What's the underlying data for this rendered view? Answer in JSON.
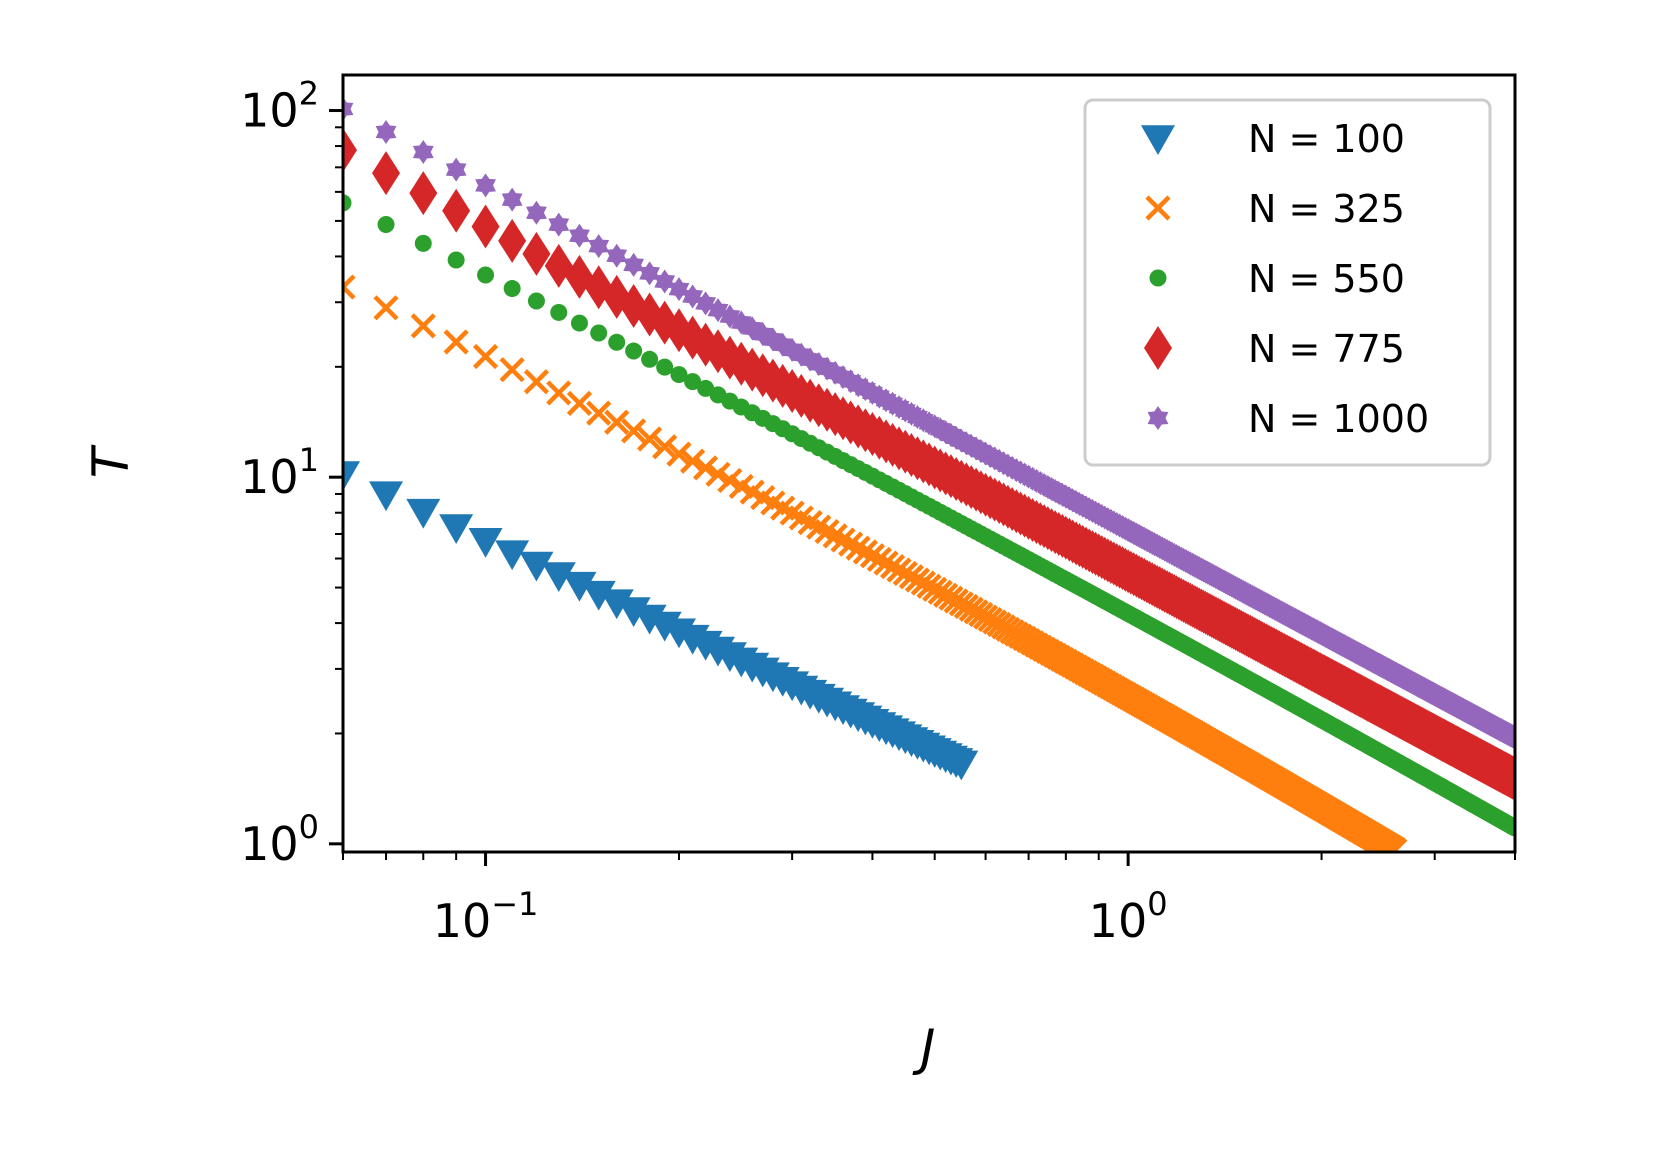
{
  "chart_data": {
    "type": "scatter",
    "title": "",
    "xlabel": "J",
    "ylabel": "T",
    "xscale": "log",
    "yscale": "log",
    "xlim": [
      0.06,
      4.0
    ],
    "ylim": [
      0.95,
      125
    ],
    "x_ticks": [
      {
        "base": "10",
        "exp": "−1",
        "value": 0.1
      },
      {
        "base": "10",
        "exp": "0",
        "value": 1
      }
    ],
    "y_ticks": [
      {
        "base": "10",
        "exp": "0",
        "value": 1
      },
      {
        "base": "10",
        "exp": "1",
        "value": 10
      },
      {
        "base": "10",
        "exp": "2",
        "value": 100
      }
    ],
    "grid": false,
    "legend_position": "top-right",
    "x_step": 0.01,
    "series": [
      {
        "name": "N = 100",
        "label": "N = 100",
        "marker": "triangle-down",
        "color": "#1f77b4",
        "x_start": 0.06,
        "x_end": 0.55,
        "t_at_start": 10.2,
        "slope": -0.82,
        "curvature": 0
      },
      {
        "name": "N = 325",
        "label": "N = 325",
        "marker": "x",
        "color": "#ff7f0e",
        "x_start": 0.06,
        "x_end": 2.6,
        "t_at_start": 33.0,
        "slope": -0.84,
        "curvature": -0.06
      },
      {
        "name": "N = 550",
        "label": "N = 550",
        "marker": "circle",
        "color": "#2ca02c",
        "x_start": 0.06,
        "x_end": 4.0,
        "t_at_start": 56.0,
        "slope": -0.88,
        "curvature": -0.03
      },
      {
        "name": "N = 775",
        "label": "N = 775",
        "marker": "diamond",
        "color": "#d62728",
        "x_start": 0.06,
        "x_end": 4.0,
        "t_at_start": 78.0,
        "slope": -0.94,
        "curvature": 0
      },
      {
        "name": "N = 1000",
        "label": "N = 1000",
        "marker": "star",
        "color": "#9467bd",
        "x_start": 0.06,
        "x_end": 4.0,
        "t_at_start": 101.0,
        "slope": -0.94,
        "curvature": 0
      }
    ]
  }
}
